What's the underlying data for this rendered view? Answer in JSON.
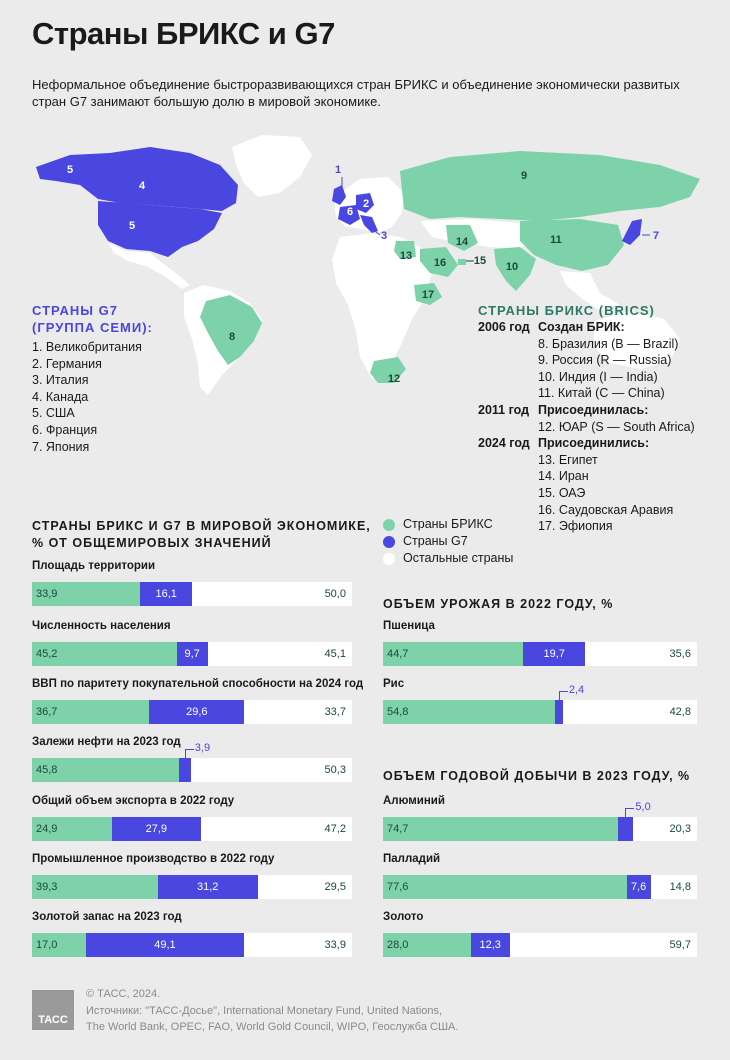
{
  "title": "Страны БРИКС и G7",
  "subtitle": "Неформальное объединение быстроразвивающихся стран БРИКС и объединение экономически развитых стран G7 занимают большую долю в мировой экономике.",
  "colors": {
    "brics": "#7ed2aa",
    "g7": "#4a46e0",
    "others": "#ffffff",
    "land": "#ffffff",
    "background": "#ebebeb"
  },
  "map_numbers": [
    "1",
    "2",
    "3",
    "4",
    "5",
    "6",
    "7",
    "8",
    "9",
    "10",
    "11",
    "12",
    "13",
    "14",
    "15",
    "16",
    "17"
  ],
  "g7": {
    "heading_1": "СТРАНЫ G7",
    "heading_2": "(ГРУППА СЕМИ):",
    "members": [
      "1. Великобритания",
      "2. Германия",
      "3. Италия",
      "4. Канада",
      "5. США",
      "6. Франция",
      "7. Япония"
    ]
  },
  "brics": {
    "heading": "СТРАНЫ БРИКС (BRICS)",
    "groups": [
      {
        "year": "2006 год",
        "title": "Создан БРИК:",
        "members": [
          "8. Бразилия (B — Brazil)",
          "9. Россия (R — Russia)",
          "10. Индия (I — India)",
          "11. Китай (C — China)"
        ]
      },
      {
        "year": "2011 год",
        "title": "Присоединилась:",
        "members": [
          "12. ЮАР (S — South Africa)"
        ]
      },
      {
        "year": "2024 год",
        "title": "Присоединились:",
        "members": [
          "13. Египет",
          "14. Иран",
          "15. ОАЭ",
          "16. Саудовская Аравия",
          "17. Эфиопия"
        ]
      }
    ]
  },
  "legend": [
    "Страны БРИКС",
    "Страны G7",
    "Остальные страны"
  ],
  "section_world": {
    "heading_1": "СТРАНЫ БРИКС И G7 В МИРОВОЙ ЭКОНОМИКЕ,",
    "heading_2": "% ОТ ОБЩЕМИРОВЫХ ЗНАЧЕНИЙ"
  },
  "section_harvest": {
    "heading": "ОБЪЕМ УРОЖАЯ В 2022 ГОДУ, %"
  },
  "section_mining": {
    "heading": "ОБЪЕМ ГОДОВОЙ ДОБЫЧИ В 2023 ГОДУ, %"
  },
  "chart_data": [
    {
      "type": "bar",
      "stacked": true,
      "orientation": "horizontal",
      "title": "СТРАНЫ БРИКС И G7 В МИРОВОЙ ЭКОНОМИКЕ, % ОТ ОБЩЕМИРОВЫХ ЗНАЧЕНИЙ",
      "categories": [
        "Площадь территории",
        "Численность населения",
        "ВВП по паритету покупательной способности на 2024 год",
        "Залежи нефти на 2023 год",
        "Общий объем экспорта в 2022 году",
        "Промышленное производство в 2022 году",
        "Золотой запас на 2023 год"
      ],
      "series": [
        {
          "name": "Страны БРИКС",
          "values": [
            33.9,
            45.2,
            36.7,
            45.8,
            24.9,
            39.3,
            17.0
          ],
          "labels": [
            "33,9",
            "45,2",
            "36,7",
            "45,8",
            "24,9",
            "39,3",
            "17,0"
          ]
        },
        {
          "name": "Страны G7",
          "values": [
            16.1,
            9.7,
            29.6,
            3.9,
            27.9,
            31.2,
            49.1
          ],
          "labels": [
            "16,1",
            "9,7",
            "29,6",
            "3,9",
            "27,9",
            "31,2",
            "49,1"
          ]
        },
        {
          "name": "Остальные страны",
          "values": [
            50.0,
            45.1,
            33.7,
            50.3,
            47.2,
            29.5,
            33.9
          ],
          "labels": [
            "50,0",
            "45,1",
            "33,7",
            "50,3",
            "47,2",
            "29,5",
            "33,9"
          ]
        }
      ],
      "legend_placement": "top-right"
    },
    {
      "type": "bar",
      "stacked": true,
      "orientation": "horizontal",
      "title": "ОБЪЕМ УРОЖАЯ В 2022 ГОДУ, %",
      "categories": [
        "Пшеница",
        "Рис"
      ],
      "series": [
        {
          "name": "Страны БРИКС",
          "values": [
            44.7,
            54.8
          ],
          "labels": [
            "44,7",
            "54,8"
          ]
        },
        {
          "name": "Страны G7",
          "values": [
            19.7,
            2.4
          ],
          "labels": [
            "19,7",
            "2,4"
          ]
        },
        {
          "name": "Остальные страны",
          "values": [
            35.6,
            42.8
          ],
          "labels": [
            "35,6",
            "42,8"
          ]
        }
      ]
    },
    {
      "type": "bar",
      "stacked": true,
      "orientation": "horizontal",
      "title": "ОБЪЕМ ГОДОВОЙ ДОБЫЧИ В 2023 ГОДУ, %",
      "categories": [
        "Алюминий",
        "Палладий",
        "Золото"
      ],
      "series": [
        {
          "name": "Страны БРИКС",
          "values": [
            74.7,
            77.6,
            28.0
          ],
          "labels": [
            "74,7",
            "77,6",
            "28,0"
          ]
        },
        {
          "name": "Страны G7",
          "values": [
            5.0,
            7.6,
            12.3
          ],
          "labels": [
            "5,0",
            "7,6",
            "12,3"
          ]
        },
        {
          "name": "Остальные страны",
          "values": [
            20.3,
            14.8,
            59.7
          ],
          "labels": [
            "20,3",
            "14,8",
            "59,7"
          ]
        }
      ]
    }
  ],
  "footer": {
    "copyright": "© ТАСС, 2024.",
    "sources_1": "Источники: \"ТАСС-Досье\", International Monetary Fund, United Nations,",
    "sources_2": "The World Bank, OPEC, FAO, World Gold Council, WIPO, Геослужба США.",
    "logo": "ТАСС"
  }
}
